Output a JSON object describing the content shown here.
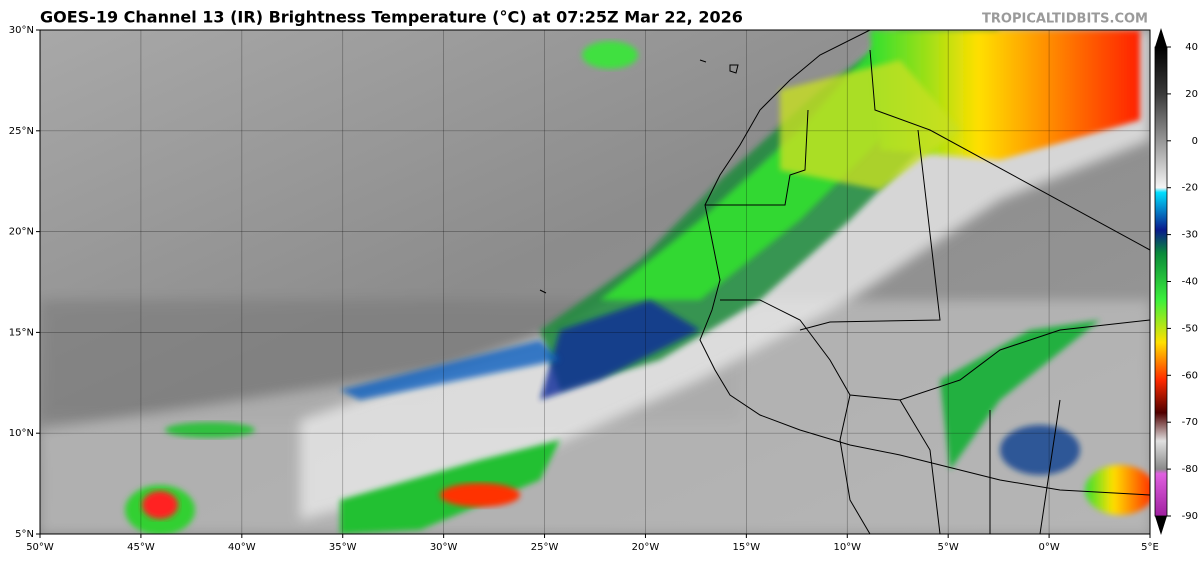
{
  "header": {
    "title": "GOES-19 Channel 13 (IR) Brightness Temperature (°C) at 07:25Z Mar 22, 2026",
    "credit": "TROPICALTIDBITS.COM"
  },
  "map": {
    "lon_labels": [
      "50°W",
      "45°W",
      "40°W",
      "35°W",
      "30°W",
      "25°W",
      "20°W",
      "15°W",
      "10°W",
      "5°W",
      "0°W",
      "5°E"
    ],
    "lat_labels": [
      "30°N",
      "25°N",
      "20°N",
      "15°N",
      "10°N",
      "5°N"
    ]
  },
  "colorbar": {
    "ticks": [
      40,
      20,
      0,
      -20,
      -30,
      -40,
      -50,
      -60,
      -70,
      -80,
      -90
    ]
  }
}
